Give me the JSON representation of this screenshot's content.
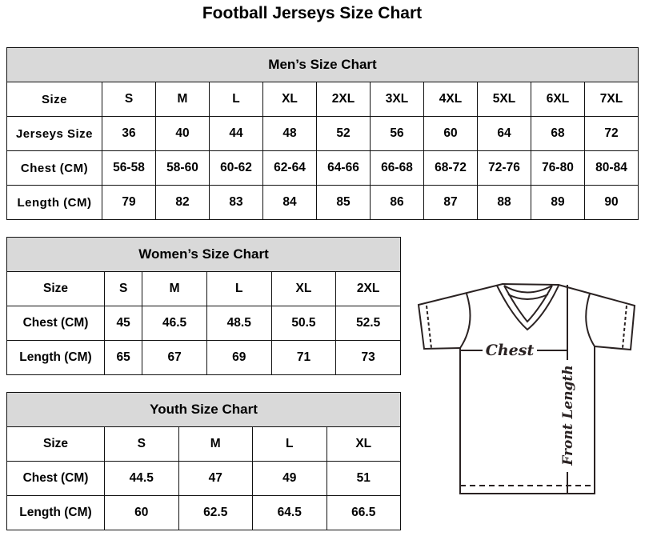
{
  "title": "Football Jerseys Size Chart",
  "men": {
    "title": "Men’s Size Chart",
    "rows": [
      [
        "Size",
        "S",
        "M",
        "L",
        "XL",
        "2XL",
        "3XL",
        "4XL",
        "5XL",
        "6XL",
        "7XL"
      ],
      [
        "Jerseys Size",
        "36",
        "40",
        "44",
        "48",
        "52",
        "56",
        "60",
        "64",
        "68",
        "72"
      ],
      [
        "Chest (CM)",
        "56-58",
        "58-60",
        "60-62",
        "62-64",
        "64-66",
        "66-68",
        "68-72",
        "72-76",
        "76-80",
        "80-84"
      ],
      [
        "Length (CM)",
        "79",
        "82",
        "83",
        "84",
        "85",
        "86",
        "87",
        "88",
        "89",
        "90"
      ]
    ]
  },
  "women": {
    "title": "Women’s Size Chart",
    "rows": [
      [
        "Size",
        "S",
        "M",
        "L",
        "XL",
        "2XL"
      ],
      [
        "Chest (CM)",
        "45",
        "46.5",
        "48.5",
        "50.5",
        "52.5"
      ],
      [
        "Length (CM)",
        "65",
        "67",
        "69",
        "71",
        "73"
      ]
    ]
  },
  "youth": {
    "title": "Youth Size Chart",
    "rows": [
      [
        "Size",
        "S",
        "M",
        "L",
        "XL"
      ],
      [
        "Chest (CM)",
        "44.5",
        "47",
        "49",
        "51"
      ],
      [
        "Length (CM)",
        "60",
        "62.5",
        "64.5",
        "66.5"
      ]
    ]
  },
  "diagram": {
    "chest_label": "Chest",
    "length_label": "Front Length"
  }
}
